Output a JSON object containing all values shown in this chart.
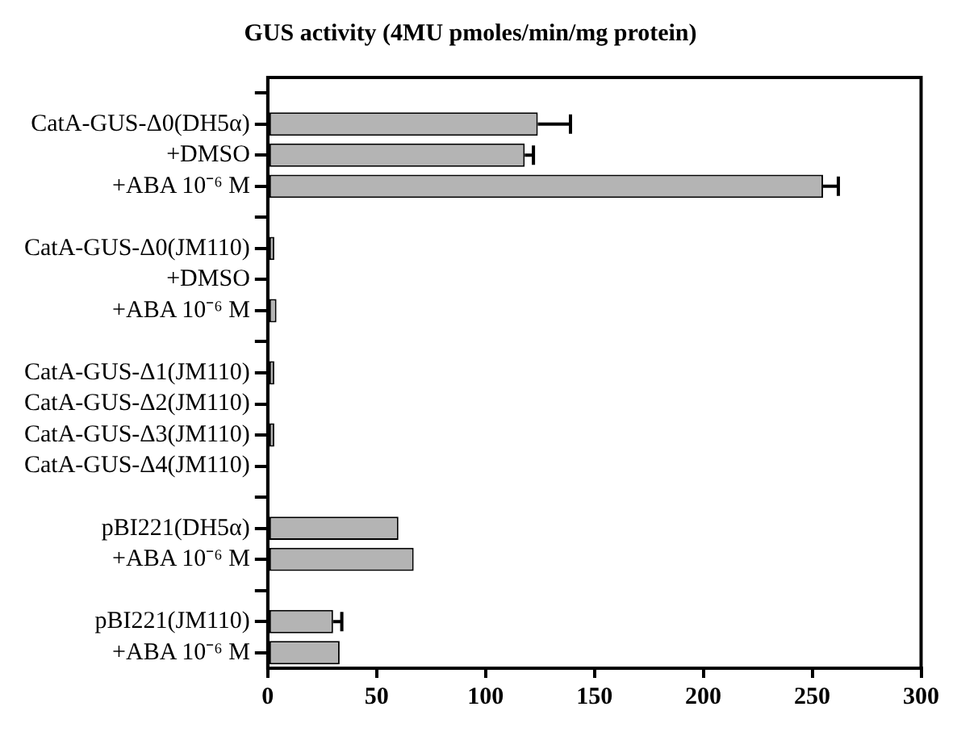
{
  "chart_data": {
    "type": "bar",
    "orientation": "horizontal",
    "xlabel": "GUS activity (4MU pmoles/min/mg protein)",
    "categories": [
      null,
      "CatA-GUS-Δ0(DH5α)",
      "+DMSO",
      "+ABA 10⁻⁶ M",
      null,
      "CatA-GUS-Δ0(JM110)",
      "+DMSO",
      "+ABA 10⁻⁶ M",
      null,
      "CatA-GUS-Δ1(JM110)",
      "CatA-GUS-Δ2(JM110)",
      "CatA-GUS-Δ3(JM110)",
      "CatA-GUS-Δ4(JM110)",
      null,
      "pBI221(DH5α)",
      "+ABA 10⁻⁶ M",
      null,
      "pBI221(JM110)",
      "+ABA 10⁻⁶ M"
    ],
    "values": [
      null,
      124,
      118,
      255,
      null,
      3,
      null,
      4,
      null,
      3,
      null,
      3,
      0,
      null,
      60,
      67,
      null,
      30,
      33
    ],
    "errors": [
      null,
      [
        124,
        139
      ],
      [
        118,
        122
      ],
      [
        255,
        262
      ],
      null,
      null,
      null,
      null,
      null,
      null,
      null,
      null,
      null,
      null,
      null,
      null,
      null,
      [
        30,
        34
      ],
      null
    ],
    "color": "#b4b4b4",
    "xlim": [
      0,
      300
    ],
    "xticks": [
      0,
      50,
      100,
      150,
      200,
      250,
      300
    ],
    "grid": false,
    "legend": false
  }
}
